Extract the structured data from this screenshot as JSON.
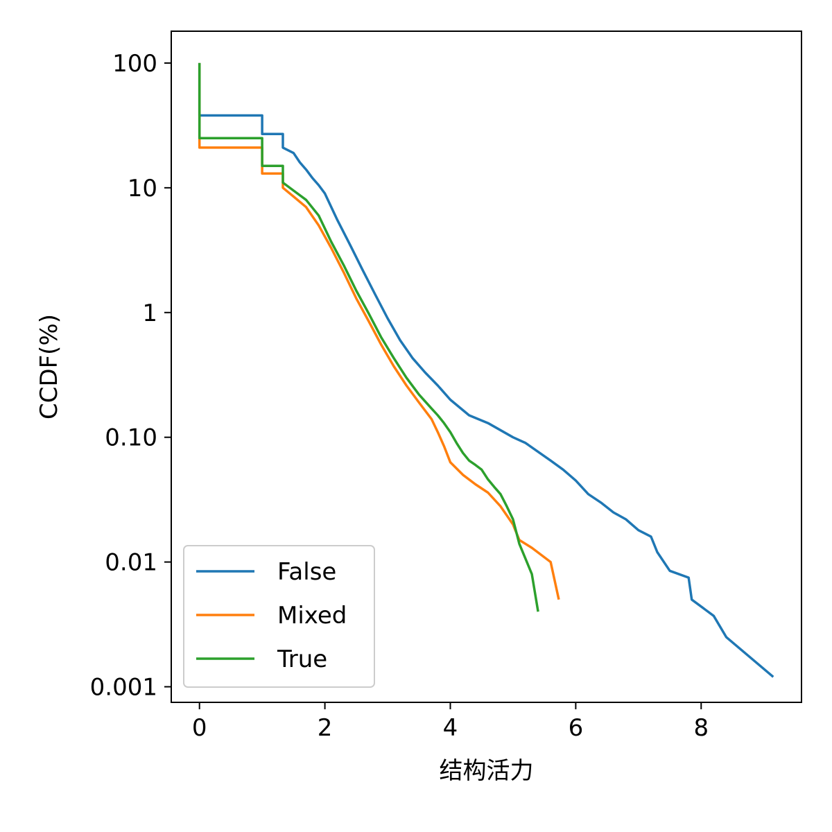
{
  "chart_data": {
    "type": "line",
    "title": "",
    "xlabel": "结构活力",
    "ylabel": "CCDF(%)",
    "xlim": [
      -0.45,
      9.6
    ],
    "ylim": [
      0.00075,
      180
    ],
    "yscale": "log",
    "xticks": [
      0,
      2,
      4,
      6,
      8
    ],
    "xtick_labels": [
      "0",
      "2",
      "4",
      "6",
      "8"
    ],
    "yticks": [
      100,
      10,
      1,
      0.1,
      0.01,
      0.001
    ],
    "ytick_labels": [
      "100",
      "10",
      "1",
      "0.10",
      "0.01",
      "0.001"
    ],
    "grid": false,
    "legend_position": "lower-left",
    "series": [
      {
        "name": "False",
        "color": "#1f77b4",
        "x": [
          0,
          0,
          1.0,
          1.0,
          1.33,
          1.33,
          1.5,
          1.6,
          1.7,
          1.8,
          1.9,
          2.0,
          2.2,
          2.4,
          2.6,
          2.8,
          3.0,
          3.2,
          3.4,
          3.6,
          3.8,
          4.0,
          4.3,
          4.6,
          5.0,
          5.2,
          5.6,
          5.8,
          6.0,
          6.2,
          6.4,
          6.6,
          6.8,
          7.0,
          7.2,
          7.3,
          7.5,
          7.8,
          7.85,
          8.2,
          8.4,
          9.15
        ],
        "y": [
          100,
          38,
          38,
          27,
          27,
          21,
          19,
          16,
          14,
          12,
          10.5,
          9,
          5.5,
          3.5,
          2.2,
          1.4,
          0.9,
          0.6,
          0.43,
          0.33,
          0.26,
          0.2,
          0.15,
          0.13,
          0.1,
          0.09,
          0.065,
          0.055,
          0.045,
          0.035,
          0.03,
          0.025,
          0.022,
          0.018,
          0.016,
          0.012,
          0.0085,
          0.0075,
          0.005,
          0.0037,
          0.0025,
          0.0012
        ]
      },
      {
        "name": "Mixed",
        "color": "#ff7f0e",
        "x": [
          0,
          0,
          1.0,
          1.0,
          1.33,
          1.33,
          1.5,
          1.7,
          1.9,
          2.1,
          2.3,
          2.5,
          2.7,
          2.9,
          3.1,
          3.3,
          3.5,
          3.7,
          3.8,
          3.9,
          4.0,
          4.2,
          4.4,
          4.6,
          4.8,
          5.0,
          5.1,
          5.3,
          5.6,
          5.73
        ],
        "y": [
          100,
          21,
          21,
          13,
          13,
          10,
          8.5,
          7,
          5,
          3.3,
          2.1,
          1.3,
          0.85,
          0.55,
          0.37,
          0.26,
          0.19,
          0.14,
          0.11,
          0.085,
          0.063,
          0.05,
          0.042,
          0.036,
          0.028,
          0.02,
          0.015,
          0.013,
          0.01,
          0.005
        ]
      },
      {
        "name": "True",
        "color": "#2ca02c",
        "x": [
          0,
          0,
          1.0,
          1.0,
          1.33,
          1.33,
          1.5,
          1.7,
          1.9,
          2.1,
          2.3,
          2.5,
          2.7,
          2.9,
          3.1,
          3.3,
          3.5,
          3.7,
          3.8,
          3.9,
          4.0,
          4.1,
          4.2,
          4.3,
          4.4,
          4.5,
          4.6,
          4.7,
          4.8,
          4.9,
          5.0,
          5.1,
          5.3,
          5.4
        ],
        "y": [
          100,
          25,
          25,
          15,
          15,
          11,
          9.5,
          8,
          6,
          3.7,
          2.4,
          1.5,
          0.98,
          0.63,
          0.43,
          0.3,
          0.22,
          0.17,
          0.15,
          0.13,
          0.11,
          0.09,
          0.075,
          0.065,
          0.06,
          0.055,
          0.046,
          0.04,
          0.035,
          0.028,
          0.022,
          0.014,
          0.008,
          0.004
        ]
      }
    ]
  }
}
